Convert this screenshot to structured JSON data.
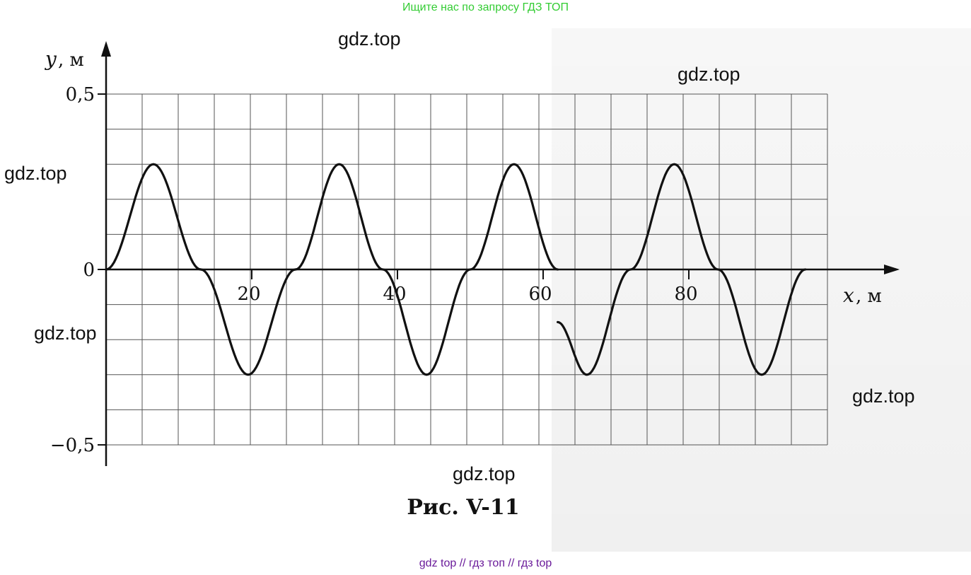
{
  "banner_top": "Ищите нас по запросу ГДЗ ТОП",
  "banner_bottom": "gdz top  //  гдз топ  //  гдз top",
  "watermarks": [
    "gdz.top",
    "gdz.top",
    "gdz.top",
    "gdz.top",
    "gdz.top",
    "gdz.top"
  ],
  "chart_data": {
    "type": "line",
    "title": "",
    "caption": "Рис. V-11",
    "xlabel": "x",
    "xunit": ", м",
    "ylabel": "y",
    "yunit": ", м",
    "x_ticks": [
      20,
      40,
      60,
      80
    ],
    "y_ticks": [
      {
        "value": 0.5,
        "label": "0,5"
      },
      {
        "value": 0,
        "label": "0"
      },
      {
        "value": -0.5,
        "label": "−0,5"
      }
    ],
    "xlim": [
      0,
      110
    ],
    "ylim": [
      -0.5,
      0.5
    ],
    "grid": true,
    "series": [
      {
        "x": [
          0,
          6.5,
          13,
          19.5,
          26,
          32,
          38,
          44,
          50,
          56,
          62
        ],
        "y": [
          0,
          0.3,
          0,
          -0.3,
          0,
          0.3,
          0,
          -0.3,
          0,
          0.3,
          0
        ]
      },
      {
        "x": [
          62,
          66,
          72,
          78,
          84,
          90,
          96
        ],
        "y": [
          -0.15,
          -0.3,
          0,
          0.3,
          0,
          -0.3,
          0
        ]
      }
    ]
  }
}
